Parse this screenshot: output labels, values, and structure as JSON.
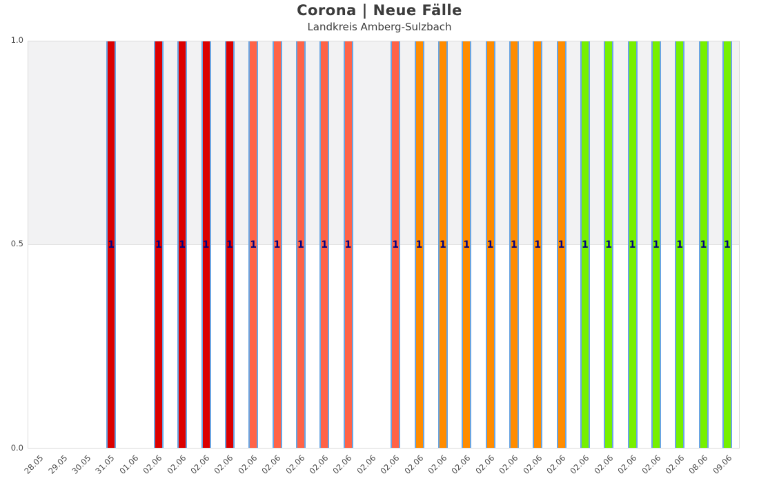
{
  "header": {
    "title": "Corona | Neue Fälle",
    "subtitle": "Landkreis Amberg-Sulzbach"
  },
  "chart_data": {
    "type": "bar",
    "title": "Corona | Neue Fälle",
    "subtitle": "Landkreis Amberg-Sulzbach",
    "categories": [
      "28.05",
      "29.05",
      "30.05",
      "31.05",
      "01.06",
      "02.06",
      "02.06",
      "02.06",
      "02.06",
      "02.06",
      "02.06",
      "02.06",
      "02.06",
      "02.06",
      "02.06",
      "02.06",
      "02.06",
      "02.06",
      "02.06",
      "02.06",
      "02.06",
      "02.06",
      "02.06",
      "02.06",
      "02.06",
      "02.06",
      "02.06",
      "02.06",
      "08.06",
      "09.06"
    ],
    "values": [
      0,
      0,
      0,
      1,
      0,
      1,
      1,
      1,
      1,
      1,
      1,
      1,
      1,
      1,
      0,
      1,
      1,
      1,
      1,
      1,
      1,
      1,
      1,
      1,
      1,
      1,
      1,
      1,
      1,
      1
    ],
    "bar_colors": [
      null,
      null,
      null,
      "#dc0000",
      null,
      "#dc0000",
      "#dc0000",
      "#dc0000",
      "#dc0000",
      "#ff6347",
      "#ff6347",
      "#ff6347",
      "#ff6347",
      "#ff6347",
      null,
      "#ff6347",
      "#ff8c00",
      "#ff8c00",
      "#ff8c00",
      "#ff8c00",
      "#ff8c00",
      "#ff8c00",
      "#ff8c00",
      "#76f000",
      "#76f000",
      "#76f000",
      "#76f000",
      "#76f000",
      "#76f000",
      "#76f000"
    ],
    "bar_label": "1",
    "bar_edge_color": "#6aa5e2",
    "bar_label_color": "#000080",
    "xlabel": "",
    "ylabel": "",
    "ylim": [
      0,
      1
    ],
    "yticks": [
      "0.0",
      "0.5",
      "1.0"
    ],
    "legend": "none",
    "grid": "off",
    "shaded_band": {
      "from": 0.5,
      "to": 1.0,
      "color": "#f2f2f3"
    }
  }
}
